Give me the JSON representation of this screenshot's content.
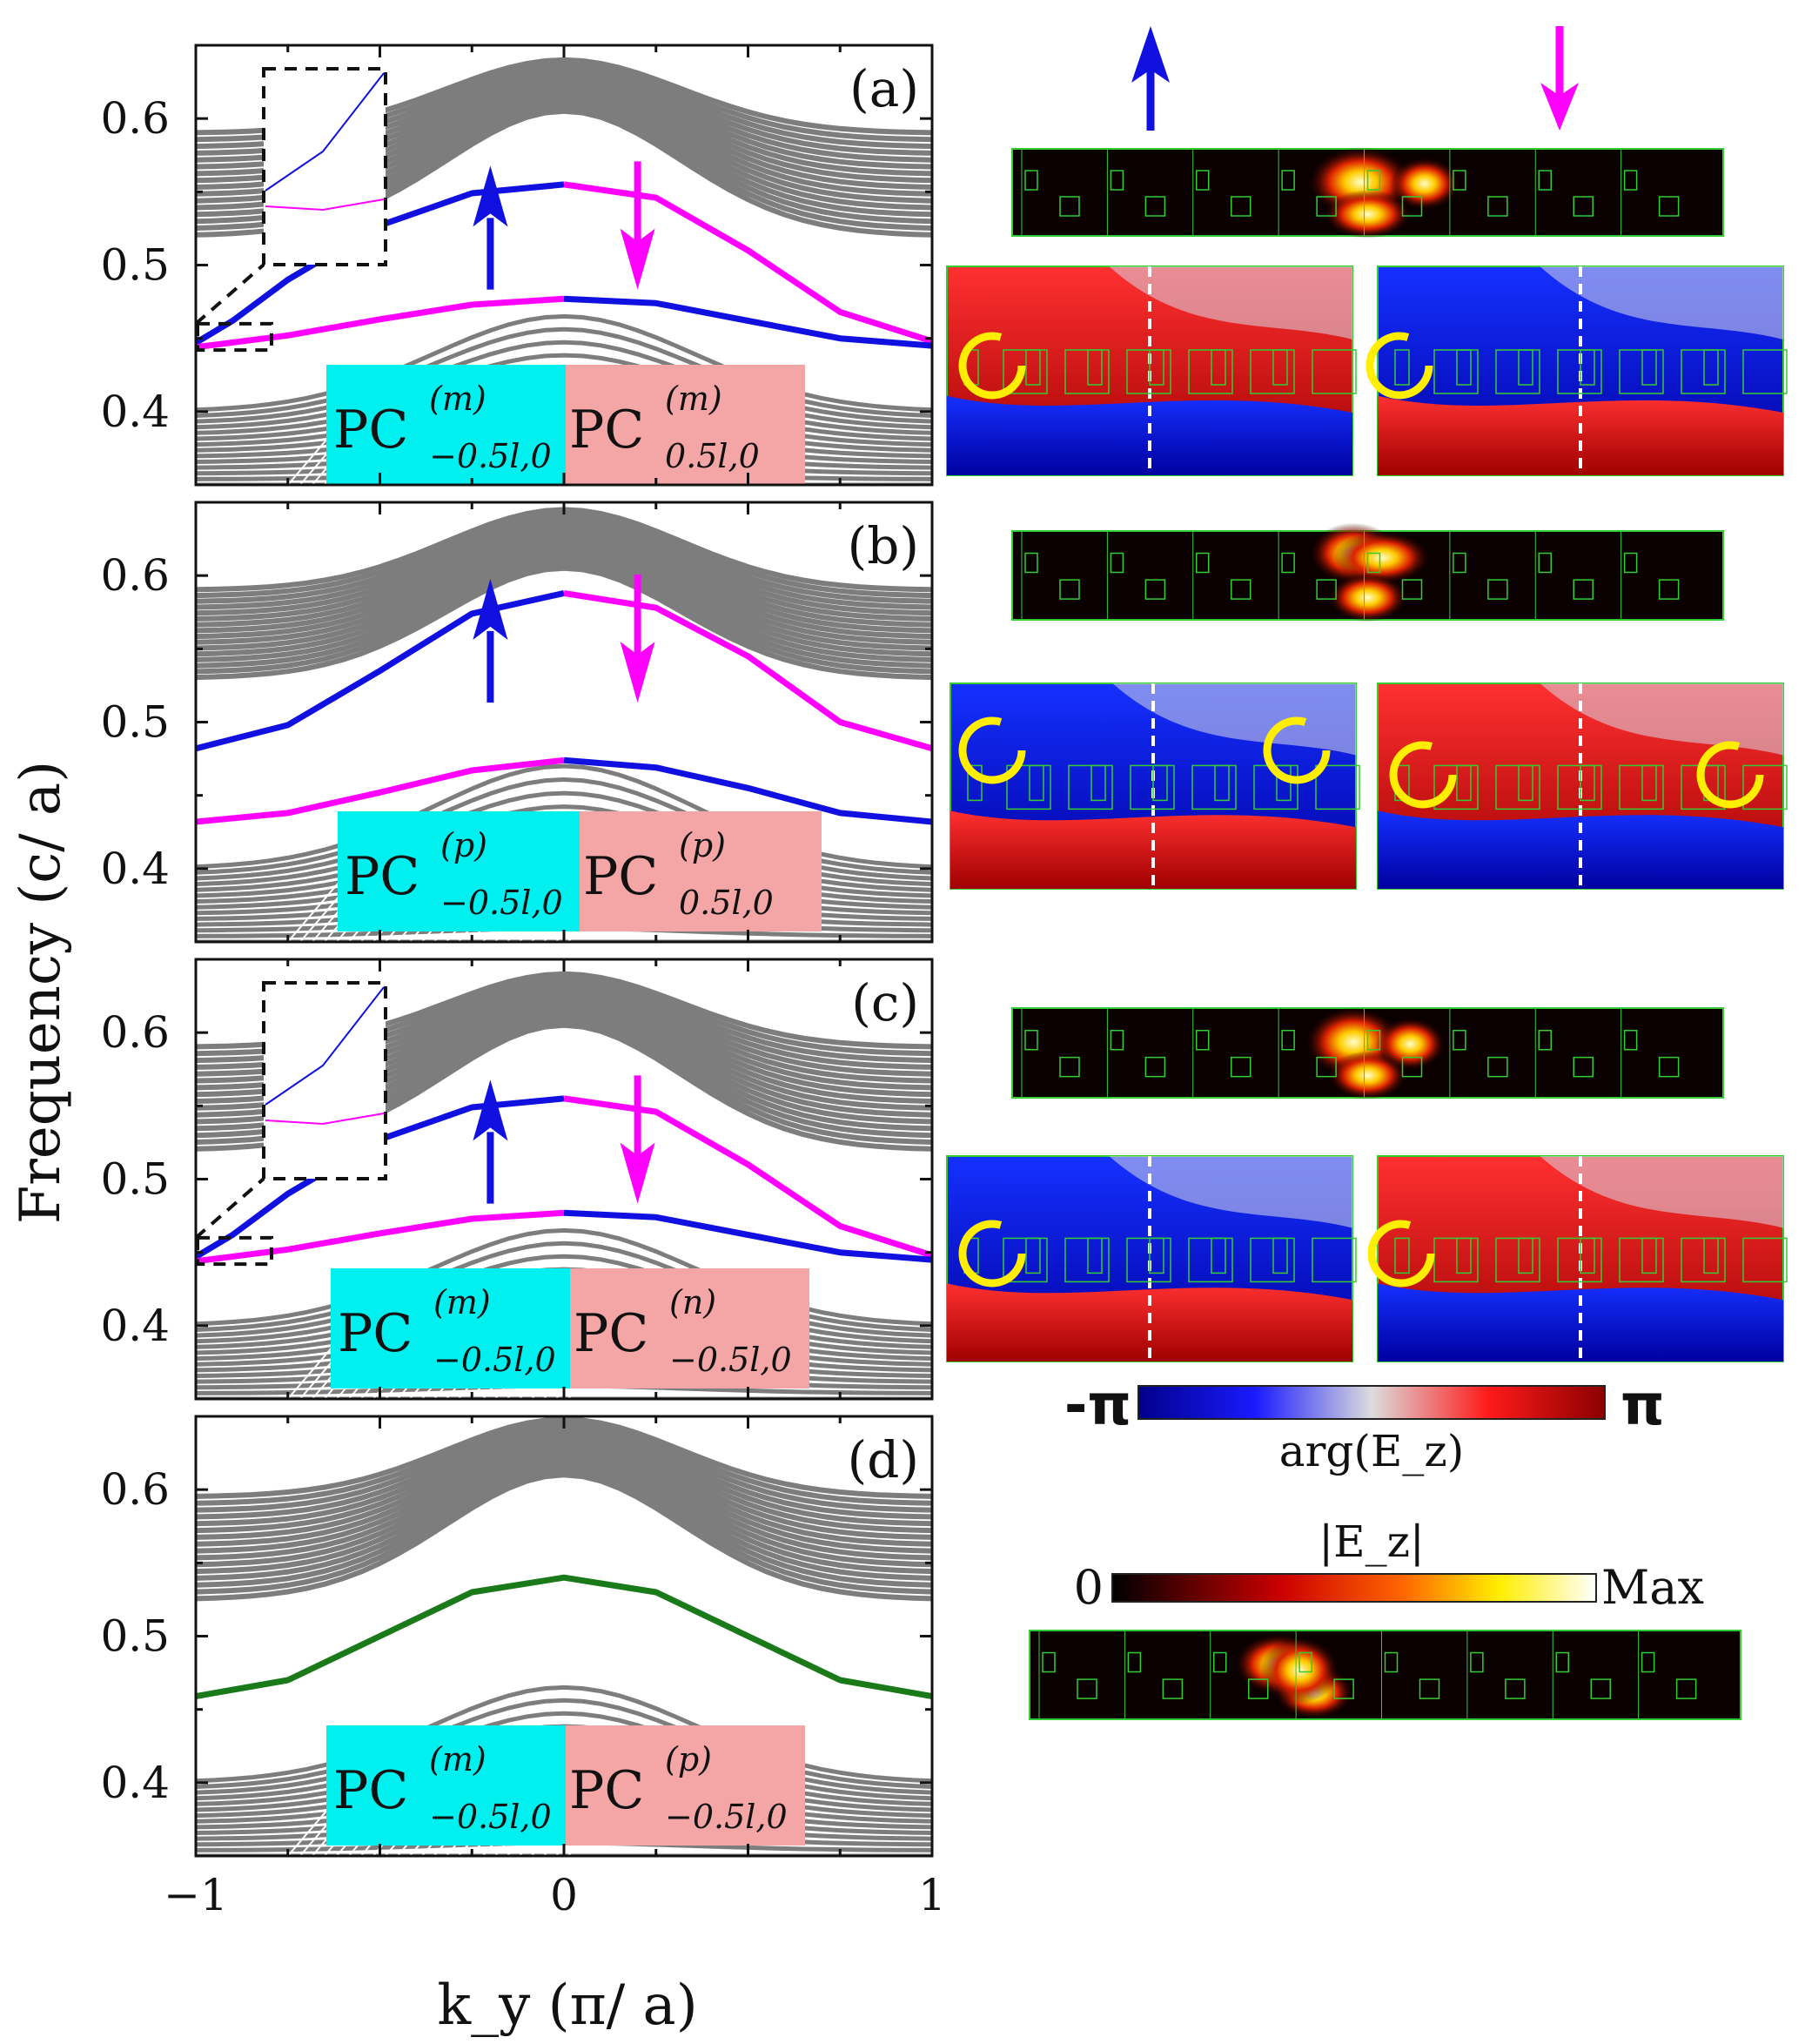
{
  "colors": {
    "blue": "#1010e0",
    "magenta": "#ff00ff",
    "green": "#1a7a1a",
    "gray": "#7d7d7d",
    "cyan": "#00f0f0",
    "pink": "#f4a6a6",
    "yellow": "#ffee00"
  },
  "chart_data": [
    {
      "type": "line",
      "panel": "(a)",
      "xlabel": "k_y (π/ a)",
      "ylabel": "Frequency (c/ a)",
      "xlim": [
        -1,
        1
      ],
      "ylim": [
        0.35,
        0.65
      ],
      "x_ticks": [
        "−1",
        "0",
        "1"
      ],
      "y_ticks": [
        "0.4",
        "0.5",
        "0.6"
      ],
      "series": [
        {
          "name": "upper edge state (spin up)",
          "color": "blue",
          "x": [
            -1,
            -0.9,
            -0.75,
            -0.5,
            -0.25,
            0
          ],
          "y": [
            0.447,
            0.462,
            0.49,
            0.527,
            0.549,
            0.555
          ]
        },
        {
          "name": "upper edge state (spin down)",
          "color": "magenta",
          "x": [
            0,
            0.25,
            0.5,
            0.75,
            1
          ],
          "y": [
            0.555,
            0.546,
            0.51,
            0.468,
            0.448
          ]
        },
        {
          "name": "lower edge state (spin down)",
          "color": "magenta",
          "x": [
            -1,
            -0.75,
            -0.5,
            -0.25,
            0
          ],
          "y": [
            0.444,
            0.452,
            0.463,
            0.473,
            0.477
          ]
        },
        {
          "name": "lower edge state (spin up)",
          "color": "blue",
          "x": [
            0,
            0.25,
            0.5,
            0.75,
            1
          ],
          "y": [
            0.477,
            0.474,
            0.462,
            0.45,
            0.445
          ]
        }
      ],
      "labels": {
        "left": "PC",
        "left_sup": "(m)",
        "left_sub": "−0.5l,0",
        "right": "PC",
        "right_sup": "(m)",
        "right_sub": "0.5l,0"
      },
      "spin_arrows": [
        "up",
        "down"
      ],
      "inset": true
    },
    {
      "type": "line",
      "panel": "(b)",
      "xlim": [
        -1,
        1
      ],
      "ylim": [
        0.35,
        0.65
      ],
      "y_ticks": [
        "0.4",
        "0.5",
        "0.6"
      ],
      "series": [
        {
          "name": "upper edge state (spin up)",
          "color": "blue",
          "x": [
            -1,
            -0.75,
            -0.5,
            -0.25,
            0
          ],
          "y": [
            0.482,
            0.498,
            0.535,
            0.574,
            0.588
          ]
        },
        {
          "name": "upper edge state (spin down)",
          "color": "magenta",
          "x": [
            0,
            0.25,
            0.5,
            0.75,
            1
          ],
          "y": [
            0.588,
            0.578,
            0.545,
            0.5,
            0.482
          ]
        },
        {
          "name": "lower edge state (spin down)",
          "color": "magenta",
          "x": [
            -1,
            -0.75,
            -0.5,
            -0.25,
            0
          ],
          "y": [
            0.432,
            0.438,
            0.452,
            0.467,
            0.474
          ]
        },
        {
          "name": "lower edge state (spin up)",
          "color": "blue",
          "x": [
            0,
            0.25,
            0.5,
            0.75,
            1
          ],
          "y": [
            0.474,
            0.469,
            0.455,
            0.438,
            0.432
          ]
        }
      ],
      "labels": {
        "left": "PC",
        "left_sup": "(p)",
        "left_sub": "−0.5l,0",
        "right": "PC",
        "right_sup": "(p)",
        "right_sub": "0.5l,0"
      },
      "spin_arrows": [
        "up",
        "down"
      ],
      "inset": false
    },
    {
      "type": "line",
      "panel": "(c)",
      "xlim": [
        -1,
        1
      ],
      "ylim": [
        0.35,
        0.65
      ],
      "y_ticks": [
        "0.4",
        "0.5",
        "0.6"
      ],
      "series": [
        {
          "name": "upper edge state (spin up)",
          "color": "blue",
          "x": [
            -1,
            -0.9,
            -0.75,
            -0.5,
            -0.25,
            0
          ],
          "y": [
            0.447,
            0.462,
            0.49,
            0.527,
            0.549,
            0.555
          ]
        },
        {
          "name": "upper edge state (spin down)",
          "color": "magenta",
          "x": [
            0,
            0.25,
            0.5,
            0.75,
            1
          ],
          "y": [
            0.555,
            0.546,
            0.51,
            0.468,
            0.448
          ]
        },
        {
          "name": "lower edge state (spin down)",
          "color": "magenta",
          "x": [
            -1,
            -0.75,
            -0.5,
            -0.25,
            0
          ],
          "y": [
            0.444,
            0.452,
            0.463,
            0.473,
            0.477
          ]
        },
        {
          "name": "lower edge state (spin up)",
          "color": "blue",
          "x": [
            0,
            0.25,
            0.5,
            0.75,
            1
          ],
          "y": [
            0.477,
            0.474,
            0.462,
            0.45,
            0.445
          ]
        }
      ],
      "labels": {
        "left": "PC",
        "left_sup": "(m)",
        "left_sub": "−0.5l,0",
        "right": "PC",
        "right_sup": "(n)",
        "right_sub": "−0.5l,0"
      },
      "spin_arrows": [
        "up",
        "down"
      ],
      "inset": true
    },
    {
      "type": "line",
      "panel": "(d)",
      "xlim": [
        -1,
        1
      ],
      "ylim": [
        0.35,
        0.65
      ],
      "y_ticks": [
        "0.4",
        "0.5",
        "0.6"
      ],
      "series": [
        {
          "name": "edge state",
          "color": "green",
          "x": [
            -1,
            -0.75,
            -0.5,
            -0.25,
            0,
            0.25,
            0.5,
            0.75,
            1
          ],
          "y": [
            0.459,
            0.47,
            0.5,
            0.53,
            0.54,
            0.53,
            0.5,
            0.47,
            0.459
          ]
        }
      ],
      "labels": {
        "left": "PC",
        "left_sup": "(m)",
        "left_sub": "−0.5l,0",
        "right": "PC",
        "right_sup": "(p)",
        "right_sub": "−0.5l,0"
      },
      "spin_arrows": [],
      "inset": false
    }
  ],
  "colorbars": {
    "phase": {
      "min_label": "-π",
      "max_label": "π",
      "title": "arg(E_z)"
    },
    "amplitude": {
      "min_label": "0",
      "max_label": "Max",
      "title": "|E_z|"
    }
  }
}
